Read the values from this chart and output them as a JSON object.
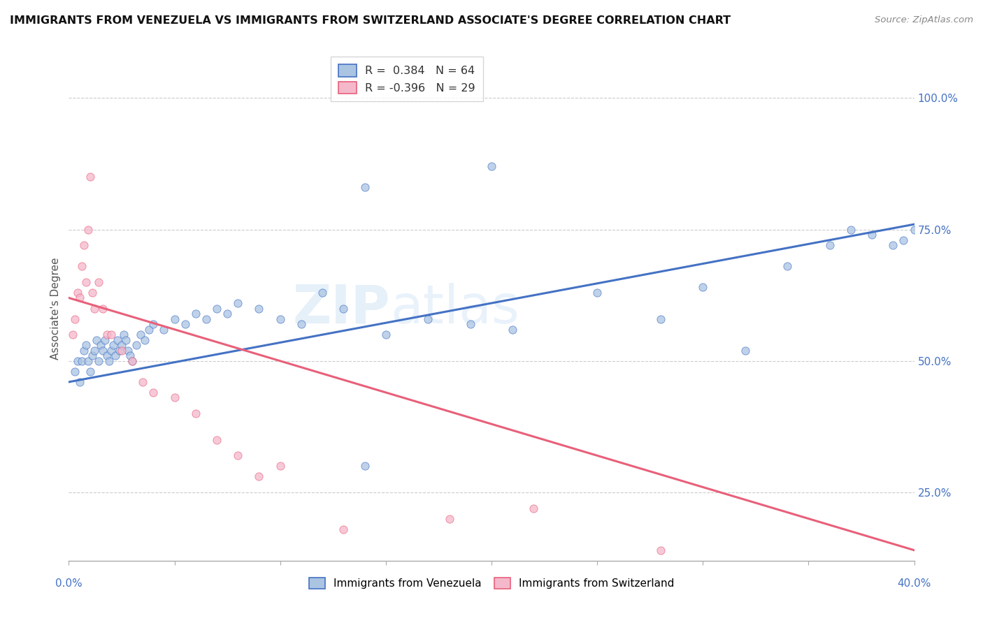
{
  "title": "IMMIGRANTS FROM VENEZUELA VS IMMIGRANTS FROM SWITZERLAND ASSOCIATE'S DEGREE CORRELATION CHART",
  "source": "Source: ZipAtlas.com",
  "ylabel": "Associate's Degree",
  "x_min": 0.0,
  "x_max": 40.0,
  "y_min": 12.0,
  "y_max": 108.0,
  "y_ticks": [
    25.0,
    50.0,
    75.0,
    100.0
  ],
  "legend1_label": "R =  0.384   N = 64",
  "legend2_label": "R = -0.396   N = 29",
  "blue_color": "#aac4e2",
  "pink_color": "#f5b8cb",
  "blue_line_color": "#4472c4",
  "pink_line_color": "#e8607a",
  "watermark_zip": "ZIP",
  "watermark_atlas": "atlas",
  "blue_trend_x0": 0.0,
  "blue_trend_y0": 46.0,
  "blue_trend_x1": 40.0,
  "blue_trend_y1": 76.0,
  "pink_trend_x0": 0.0,
  "pink_trend_y0": 62.0,
  "pink_trend_x1": 40.0,
  "pink_trend_y1": 14.0,
  "blue_x": [
    0.3,
    0.4,
    0.5,
    0.6,
    0.7,
    0.8,
    0.9,
    1.0,
    1.1,
    1.2,
    1.3,
    1.4,
    1.5,
    1.6,
    1.7,
    1.8,
    1.9,
    2.0,
    2.1,
    2.2,
    2.3,
    2.4,
    2.5,
    2.6,
    2.7,
    2.8,
    2.9,
    3.0,
    3.2,
    3.4,
    3.6,
    3.8,
    4.0,
    4.5,
    5.0,
    5.5,
    6.0,
    6.5,
    7.0,
    7.5,
    8.0,
    9.0,
    10.0,
    11.0,
    12.0,
    13.0,
    14.0,
    15.0,
    17.0,
    19.0,
    21.0,
    25.0,
    28.0,
    30.0,
    32.0,
    34.0,
    36.0,
    37.0,
    38.0,
    39.0,
    39.5,
    40.0,
    14.0,
    20.0
  ],
  "blue_y": [
    48.0,
    50.0,
    46.0,
    50.0,
    52.0,
    53.0,
    50.0,
    48.0,
    51.0,
    52.0,
    54.0,
    50.0,
    53.0,
    52.0,
    54.0,
    51.0,
    50.0,
    52.0,
    53.0,
    51.0,
    54.0,
    52.0,
    53.0,
    55.0,
    54.0,
    52.0,
    51.0,
    50.0,
    53.0,
    55.0,
    54.0,
    56.0,
    57.0,
    56.0,
    58.0,
    57.0,
    59.0,
    58.0,
    60.0,
    59.0,
    61.0,
    60.0,
    58.0,
    57.0,
    63.0,
    60.0,
    30.0,
    55.0,
    58.0,
    57.0,
    56.0,
    63.0,
    58.0,
    64.0,
    52.0,
    68.0,
    72.0,
    75.0,
    74.0,
    72.0,
    73.0,
    75.0,
    83.0,
    87.0
  ],
  "pink_x": [
    0.2,
    0.3,
    0.4,
    0.5,
    0.6,
    0.7,
    0.8,
    0.9,
    1.0,
    1.1,
    1.2,
    1.4,
    1.6,
    1.8,
    2.0,
    2.5,
    3.0,
    3.5,
    4.0,
    5.0,
    6.0,
    7.0,
    8.0,
    9.0,
    10.0,
    13.0,
    18.0,
    22.0,
    28.0
  ],
  "pink_y": [
    55.0,
    58.0,
    63.0,
    62.0,
    68.0,
    72.0,
    65.0,
    75.0,
    85.0,
    63.0,
    60.0,
    65.0,
    60.0,
    55.0,
    55.0,
    52.0,
    50.0,
    46.0,
    44.0,
    43.0,
    40.0,
    35.0,
    32.0,
    28.0,
    30.0,
    18.0,
    20.0,
    22.0,
    14.0
  ]
}
